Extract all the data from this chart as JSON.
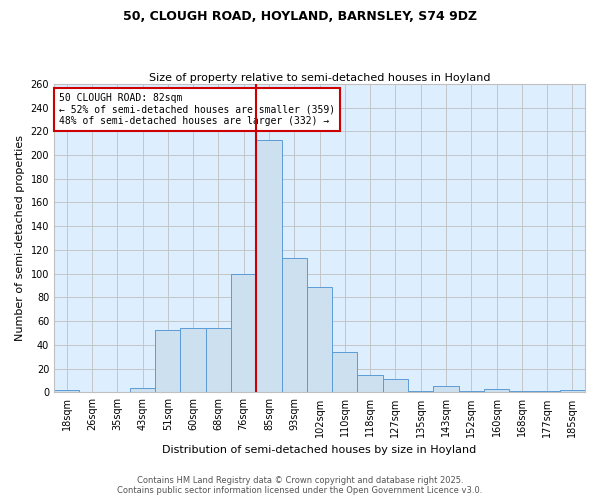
{
  "title": "50, CLOUGH ROAD, HOYLAND, BARNSLEY, S74 9DZ",
  "subtitle": "Size of property relative to semi-detached houses in Hoyland",
  "xlabel": "Distribution of semi-detached houses by size in Hoyland",
  "ylabel": "Number of semi-detached properties",
  "footer1": "Contains HM Land Registry data © Crown copyright and database right 2025.",
  "footer2": "Contains public sector information licensed under the Open Government Licence v3.0.",
  "annotation_title": "50 CLOUGH ROAD: 82sqm",
  "annotation_line1": "← 52% of semi-detached houses are smaller (359)",
  "annotation_line2": "48% of semi-detached houses are larger (332) →",
  "categories": [
    "18sqm",
    "26sqm",
    "35sqm",
    "43sqm",
    "51sqm",
    "60sqm",
    "68sqm",
    "76sqm",
    "85sqm",
    "93sqm",
    "102sqm",
    "110sqm",
    "118sqm",
    "127sqm",
    "135sqm",
    "143sqm",
    "152sqm",
    "160sqm",
    "168sqm",
    "177sqm",
    "185sqm"
  ],
  "values": [
    2,
    0,
    0,
    4,
    53,
    54,
    54,
    100,
    213,
    113,
    89,
    34,
    15,
    11,
    1,
    5,
    1,
    3,
    1,
    1,
    2
  ],
  "bar_color": "#cce0f0",
  "bar_edge_color": "#5b9bd5",
  "vline_color": "#cc0000",
  "annotation_box_edge": "#cc0000",
  "annotation_box_face": "#ffffff",
  "grid_color": "#c0c0c0",
  "background_color": "#ffffff",
  "ax_face_color": "#ddeeff",
  "ylim": [
    0,
    260
  ],
  "yticks": [
    0,
    20,
    40,
    60,
    80,
    100,
    120,
    140,
    160,
    180,
    200,
    220,
    240,
    260
  ],
  "vline_x_index": 7.5,
  "title_fontsize": 9,
  "subtitle_fontsize": 8,
  "ylabel_fontsize": 8,
  "xlabel_fontsize": 8,
  "tick_fontsize": 7,
  "footer_fontsize": 6,
  "annot_fontsize": 7
}
